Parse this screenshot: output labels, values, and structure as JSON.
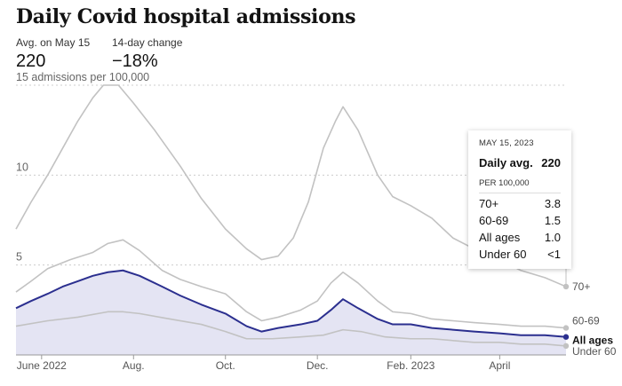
{
  "title": "Daily Covid hospital admissions",
  "stats": {
    "avg_label": "Avg. on May 15",
    "avg_value": "220",
    "change_label": "14-day change",
    "change_value": "−18%"
  },
  "colors": {
    "grey_line": "#c2c2c2",
    "all_ages_line": "#2b2f8f",
    "all_ages_fill": "#e4e4f3",
    "gridline": "#cccccc"
  },
  "tooltip": {
    "date": "MAY 15, 2023",
    "main_label": "Daily avg.",
    "main_value": "220",
    "sub_label": "PER 100,000",
    "rows": [
      {
        "label": "70+",
        "value": "3.8"
      },
      {
        "label": "60-69",
        "value": "1.5"
      },
      {
        "label": "All ages",
        "value": "1.0"
      },
      {
        "label": "Under 60",
        "value": "<1"
      }
    ]
  },
  "chart_data": {
    "type": "line",
    "x_unit": "date",
    "x_range": [
      "2022-05-15",
      "2023-05-15"
    ],
    "ylim": [
      0,
      15
    ],
    "y_ticks": [
      {
        "value": 5,
        "label": "5"
      },
      {
        "value": 10,
        "label": "10"
      },
      {
        "value": 15,
        "label": "15 admissions per 100,000"
      }
    ],
    "x_ticks": [
      {
        "date": "2022-06-01",
        "label": "June 2022"
      },
      {
        "date": "2022-08-01",
        "label": "Aug."
      },
      {
        "date": "2022-10-01",
        "label": "Oct."
      },
      {
        "date": "2022-12-01",
        "label": "Dec."
      },
      {
        "date": "2023-02-01",
        "label": "Feb. 2023"
      },
      {
        "date": "2023-04-01",
        "label": "April"
      }
    ],
    "series": [
      {
        "name": "70+",
        "highlight": false,
        "points": [
          [
            "2022-05-15",
            7.0
          ],
          [
            "2022-05-25",
            8.5
          ],
          [
            "2022-06-05",
            10.0
          ],
          [
            "2022-06-15",
            11.5
          ],
          [
            "2022-06-25",
            13.0
          ],
          [
            "2022-07-05",
            14.3
          ],
          [
            "2022-07-12",
            15.0
          ],
          [
            "2022-07-22",
            15.0
          ],
          [
            "2022-08-01",
            14.0
          ],
          [
            "2022-08-15",
            12.5
          ],
          [
            "2022-09-01",
            10.5
          ],
          [
            "2022-09-15",
            8.7
          ],
          [
            "2022-10-01",
            7.0
          ],
          [
            "2022-10-15",
            5.9
          ],
          [
            "2022-10-25",
            5.3
          ],
          [
            "2022-11-05",
            5.5
          ],
          [
            "2022-11-15",
            6.5
          ],
          [
            "2022-11-25",
            8.5
          ],
          [
            "2022-12-05",
            11.5
          ],
          [
            "2022-12-13",
            13.0
          ],
          [
            "2022-12-18",
            13.8
          ],
          [
            "2022-12-28",
            12.5
          ],
          [
            "2023-01-10",
            10.0
          ],
          [
            "2023-01-20",
            8.8
          ],
          [
            "2023-02-01",
            8.3
          ],
          [
            "2023-02-15",
            7.6
          ],
          [
            "2023-03-01",
            6.5
          ],
          [
            "2023-03-15",
            5.9
          ],
          [
            "2023-04-01",
            5.3
          ],
          [
            "2023-04-15",
            4.7
          ],
          [
            "2023-05-01",
            4.3
          ],
          [
            "2023-05-15",
            3.8
          ]
        ]
      },
      {
        "name": "60-69",
        "highlight": false,
        "points": [
          [
            "2022-05-15",
            3.5
          ],
          [
            "2022-05-25",
            4.1
          ],
          [
            "2022-06-05",
            4.8
          ],
          [
            "2022-06-20",
            5.3
          ],
          [
            "2022-07-05",
            5.7
          ],
          [
            "2022-07-15",
            6.2
          ],
          [
            "2022-07-25",
            6.4
          ],
          [
            "2022-08-05",
            5.8
          ],
          [
            "2022-08-20",
            4.7
          ],
          [
            "2022-09-01",
            4.2
          ],
          [
            "2022-09-15",
            3.8
          ],
          [
            "2022-10-01",
            3.4
          ],
          [
            "2022-10-15",
            2.4
          ],
          [
            "2022-10-25",
            1.9
          ],
          [
            "2022-11-05",
            2.1
          ],
          [
            "2022-11-20",
            2.5
          ],
          [
            "2022-12-01",
            3.0
          ],
          [
            "2022-12-10",
            4.0
          ],
          [
            "2022-12-18",
            4.6
          ],
          [
            "2022-12-28",
            4.0
          ],
          [
            "2023-01-10",
            3.0
          ],
          [
            "2023-01-20",
            2.4
          ],
          [
            "2023-02-01",
            2.3
          ],
          [
            "2023-02-15",
            2.0
          ],
          [
            "2023-03-01",
            1.9
          ],
          [
            "2023-03-15",
            1.8
          ],
          [
            "2023-04-01",
            1.7
          ],
          [
            "2023-04-15",
            1.6
          ],
          [
            "2023-05-01",
            1.6
          ],
          [
            "2023-05-15",
            1.5
          ]
        ]
      },
      {
        "name": "Under 60",
        "highlight": false,
        "points": [
          [
            "2022-05-15",
            1.6
          ],
          [
            "2022-06-05",
            1.9
          ],
          [
            "2022-06-25",
            2.1
          ],
          [
            "2022-07-15",
            2.4
          ],
          [
            "2022-07-25",
            2.4
          ],
          [
            "2022-08-05",
            2.3
          ],
          [
            "2022-08-25",
            2.0
          ],
          [
            "2022-09-15",
            1.7
          ],
          [
            "2022-10-01",
            1.3
          ],
          [
            "2022-10-15",
            0.9
          ],
          [
            "2022-11-01",
            0.9
          ],
          [
            "2022-11-20",
            1.0
          ],
          [
            "2022-12-05",
            1.1
          ],
          [
            "2022-12-18",
            1.4
          ],
          [
            "2022-12-30",
            1.3
          ],
          [
            "2023-01-15",
            1.0
          ],
          [
            "2023-02-01",
            0.9
          ],
          [
            "2023-02-15",
            0.9
          ],
          [
            "2023-03-01",
            0.8
          ],
          [
            "2023-03-15",
            0.7
          ],
          [
            "2023-04-01",
            0.7
          ],
          [
            "2023-04-15",
            0.6
          ],
          [
            "2023-05-01",
            0.6
          ],
          [
            "2023-05-15",
            0.5
          ]
        ]
      },
      {
        "name": "All ages",
        "highlight": true,
        "points": [
          [
            "2022-05-15",
            2.6
          ],
          [
            "2022-05-25",
            3.0
          ],
          [
            "2022-06-05",
            3.4
          ],
          [
            "2022-06-15",
            3.8
          ],
          [
            "2022-06-25",
            4.1
          ],
          [
            "2022-07-05",
            4.4
          ],
          [
            "2022-07-15",
            4.6
          ],
          [
            "2022-07-25",
            4.7
          ],
          [
            "2022-08-05",
            4.4
          ],
          [
            "2022-08-20",
            3.8
          ],
          [
            "2022-09-01",
            3.3
          ],
          [
            "2022-09-15",
            2.8
          ],
          [
            "2022-10-01",
            2.3
          ],
          [
            "2022-10-15",
            1.6
          ],
          [
            "2022-10-25",
            1.3
          ],
          [
            "2022-11-05",
            1.5
          ],
          [
            "2022-11-20",
            1.7
          ],
          [
            "2022-12-01",
            1.9
          ],
          [
            "2022-12-10",
            2.5
          ],
          [
            "2022-12-18",
            3.1
          ],
          [
            "2022-12-28",
            2.6
          ],
          [
            "2023-01-10",
            2.0
          ],
          [
            "2023-01-20",
            1.7
          ],
          [
            "2023-02-01",
            1.7
          ],
          [
            "2023-02-15",
            1.5
          ],
          [
            "2023-03-01",
            1.4
          ],
          [
            "2023-03-15",
            1.3
          ],
          [
            "2023-04-01",
            1.2
          ],
          [
            "2023-04-15",
            1.1
          ],
          [
            "2023-05-01",
            1.1
          ],
          [
            "2023-05-15",
            1.0
          ]
        ]
      }
    ]
  }
}
